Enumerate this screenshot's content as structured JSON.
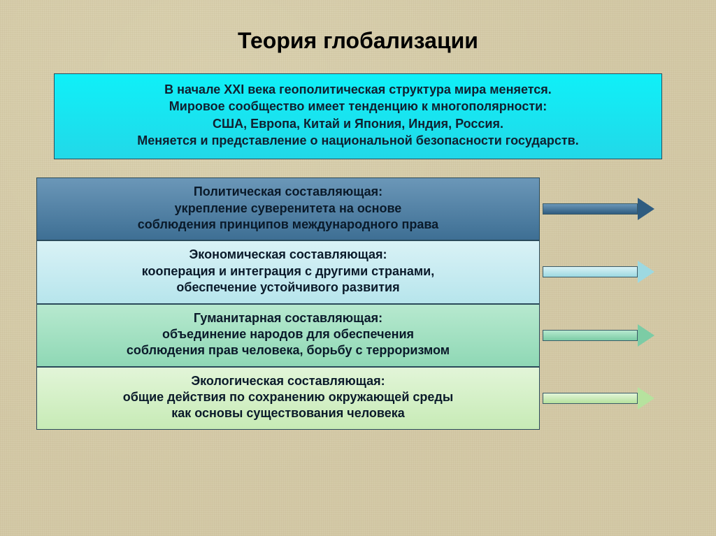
{
  "title": {
    "text": "Теория глобализации",
    "fontsize": 32,
    "color": "#000000"
  },
  "intro": {
    "line1": "В начале XXI века геополитическая структура мира меняется.",
    "line2": "Мировое сообщество имеет тенденцию к многополярности:",
    "line3": "США, Европа, Китай и Япония, Индия, Россия.",
    "line4": "Меняется и представление о национальной безопасности государств.",
    "background_gradient": [
      "#0ff0f8",
      "#22d8e8"
    ],
    "text_color": "#102030",
    "fontsize": 18
  },
  "rows": [
    {
      "heading": "Политическая составляющая:",
      "desc": "укрепление суверенитета на основе\nсоблюдения принципов международного права",
      "box_gradient": [
        "#6b97b8",
        "#3e6f94"
      ],
      "text_color": "#0a1a2a",
      "arrow_gradient": [
        "#6b97b8",
        "#2f5c80"
      ]
    },
    {
      "heading": "Экономическая составляющая:",
      "desc": "кооперация и интеграция с другими странами,\nобеспечение устойчивого развития",
      "box_gradient": [
        "#d9f2f6",
        "#b7e5ec"
      ],
      "text_color": "#0a1a2a",
      "arrow_gradient": [
        "#d9f2f6",
        "#9dd9e1"
      ]
    },
    {
      "heading": "Гуманитарная составляющая:",
      "desc": "объединение народов для обеспечения\nсоблюдения прав человека, борьбу с терроризмом",
      "box_gradient": [
        "#b7e9cf",
        "#8fd8b5"
      ],
      "text_color": "#0a1a2a",
      "arrow_gradient": [
        "#b7e9cf",
        "#7ccca5"
      ]
    },
    {
      "heading": "Экологическая составляющая:",
      "desc": "общие действия по сохранению окружающей среды\nкак основы существования человека",
      "box_gradient": [
        "#e2f5d8",
        "#c7ebb6"
      ],
      "text_color": "#0a1a2a",
      "arrow_gradient": [
        "#e2f5d8",
        "#b6e29e"
      ]
    }
  ],
  "layout": {
    "row_box_width": 720,
    "row_fontsize": 18,
    "arrow_shaft_height": 16,
    "arrow_head_size": 16
  },
  "background_color": "#d4caa8"
}
